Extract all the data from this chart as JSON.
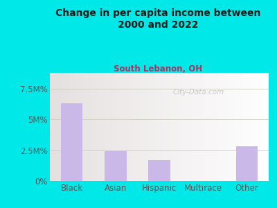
{
  "categories": [
    "Black",
    "Asian",
    "Hispanic",
    "Multirace",
    "Other"
  ],
  "values": [
    6.3,
    2.4,
    1.7,
    0.0,
    2.8
  ],
  "bar_color": "#c9b8e8",
  "background_color": "#00e8e8",
  "title": "Change in per capita income between\n2000 and 2022",
  "subtitle": "South Lebanon, OH",
  "subtitle_color": "#b03060",
  "title_color": "#1a1a1a",
  "yticks": [
    0,
    2.5,
    5.0,
    7.5
  ],
  "ytick_labels": [
    "0%",
    "2.5M%",
    "5M%",
    "7.5M%"
  ],
  "ylim": [
    0,
    8.8
  ],
  "watermark": "City-Data.com",
  "grid_line_color": "#ddddcc",
  "tick_color": "#555555"
}
